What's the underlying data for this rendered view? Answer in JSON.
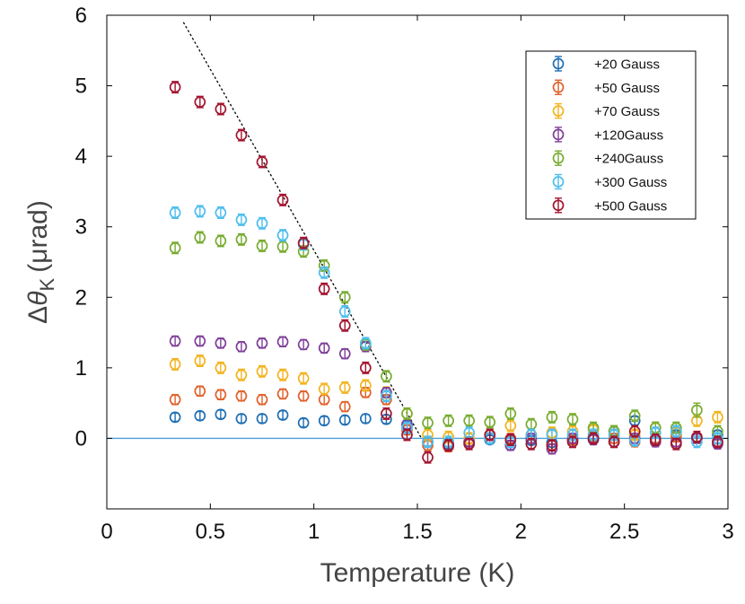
{
  "chart_data": {
    "type": "scatter",
    "title": "",
    "xlabel": "Temperature (K)",
    "ylabel": "Δθ_K (μrad)",
    "ylabel_parts": {
      "delta": "Δ",
      "theta": "θ",
      "sub": "K",
      "unit": "(μrad)"
    },
    "xlim": [
      0,
      3
    ],
    "ylim": [
      -1,
      6
    ],
    "xticks": [
      0,
      0.5,
      1,
      1.5,
      2,
      2.5,
      3
    ],
    "xtick_labels": [
      "0",
      "0.5",
      "1",
      "1.5",
      "2",
      "2.5",
      "3"
    ],
    "yticks": [
      0,
      1,
      2,
      3,
      4,
      5,
      6
    ],
    "ytick_labels": [
      "0",
      "1",
      "2",
      "3",
      "4",
      "5",
      "6"
    ],
    "legend_position": "top-right",
    "grid": false,
    "x": [
      0.33,
      0.45,
      0.55,
      0.65,
      0.75,
      0.85,
      0.95,
      1.05,
      1.15,
      1.25,
      1.35,
      1.45,
      1.55,
      1.65,
      1.75,
      1.85,
      1.95,
      2.05,
      2.15,
      2.25,
      2.35,
      2.45,
      2.55,
      2.65,
      2.75,
      2.85,
      2.95
    ],
    "baseline": {
      "y": 0,
      "color": "#4a9fd8"
    },
    "fit_line": {
      "x": [
        0.37,
        1.52
      ],
      "y": [
        5.9,
        0
      ],
      "color": "#000000",
      "style": "dotted"
    },
    "series": [
      {
        "name": "+20 Gauss",
        "color": "#1f6fb4",
        "y": [
          0.3,
          0.32,
          0.34,
          0.28,
          0.28,
          0.33,
          0.22,
          0.25,
          0.26,
          0.28,
          0.27,
          0.18,
          -0.05,
          -0.08,
          -0.05,
          -0.02,
          -0.1,
          -0.03,
          -0.06,
          -0.02,
          0.0,
          0.1,
          0.25,
          0.0,
          0.05,
          0.0,
          0.05
        ],
        "err": [
          0.06,
          0.06,
          0.06,
          0.06,
          0.06,
          0.06,
          0.06,
          0.06,
          0.06,
          0.06,
          0.06,
          0.06,
          0.06,
          0.06,
          0.06,
          0.06,
          0.06,
          0.06,
          0.06,
          0.06,
          0.06,
          0.06,
          0.06,
          0.06,
          0.06,
          0.06,
          0.06
        ]
      },
      {
        "name": "+50 Gauss",
        "color": "#e0602a",
        "y": [
          0.55,
          0.67,
          0.62,
          0.6,
          0.55,
          0.63,
          0.6,
          0.55,
          0.45,
          0.65,
          0.55,
          0.12,
          -0.1,
          -0.12,
          -0.05,
          0.05,
          0.0,
          0.05,
          -0.1,
          -0.02,
          0.02,
          0.0,
          -0.05,
          0.0,
          0.02,
          0.0,
          -0.05
        ],
        "err": [
          0.07,
          0.07,
          0.07,
          0.07,
          0.07,
          0.07,
          0.07,
          0.07,
          0.07,
          0.07,
          0.07,
          0.07,
          0.07,
          0.07,
          0.07,
          0.07,
          0.07,
          0.07,
          0.07,
          0.07,
          0.07,
          0.07,
          0.07,
          0.07,
          0.07,
          0.07,
          0.07
        ]
      },
      {
        "name": "+70 Gauss",
        "color": "#f2b41f",
        "y": [
          1.05,
          1.1,
          1.0,
          0.9,
          0.95,
          0.9,
          0.85,
          0.7,
          0.72,
          0.75,
          0.65,
          0.35,
          0.05,
          0.02,
          0.0,
          0.05,
          0.18,
          0.05,
          0.08,
          0.1,
          0.12,
          0.1,
          0.05,
          0.15,
          0.08,
          0.25,
          0.3
        ],
        "err": [
          0.08,
          0.08,
          0.08,
          0.08,
          0.08,
          0.08,
          0.08,
          0.08,
          0.08,
          0.08,
          0.08,
          0.08,
          0.08,
          0.08,
          0.08,
          0.08,
          0.08,
          0.08,
          0.08,
          0.08,
          0.08,
          0.08,
          0.08,
          0.08,
          0.08,
          0.08,
          0.08
        ]
      },
      {
        "name": "+120Gauss",
        "color": "#7f3f98",
        "y": [
          1.38,
          1.38,
          1.35,
          1.3,
          1.35,
          1.37,
          1.33,
          1.28,
          1.2,
          1.3,
          0.65,
          0.2,
          -0.05,
          -0.1,
          -0.05,
          0.0,
          -0.1,
          0.0,
          -0.15,
          0.0,
          -0.02,
          -0.05,
          0.0,
          -0.05,
          -0.05,
          0.0,
          -0.08
        ],
        "err": [
          0.07,
          0.07,
          0.07,
          0.07,
          0.07,
          0.07,
          0.07,
          0.07,
          0.07,
          0.07,
          0.07,
          0.07,
          0.07,
          0.07,
          0.07,
          0.07,
          0.07,
          0.07,
          0.07,
          0.07,
          0.07,
          0.07,
          0.07,
          0.07,
          0.07,
          0.07,
          0.07
        ]
      },
      {
        "name": "+240Gauss",
        "color": "#77ac30",
        "y": [
          2.7,
          2.85,
          2.8,
          2.82,
          2.73,
          2.72,
          2.65,
          2.45,
          2.0,
          1.33,
          0.88,
          0.35,
          0.22,
          0.25,
          0.25,
          0.23,
          0.35,
          0.2,
          0.3,
          0.27,
          0.15,
          0.1,
          0.32,
          0.15,
          0.15,
          0.4,
          0.1
        ],
        "err": [
          0.08,
          0.08,
          0.08,
          0.08,
          0.08,
          0.08,
          0.08,
          0.08,
          0.08,
          0.08,
          0.08,
          0.08,
          0.08,
          0.08,
          0.08,
          0.08,
          0.08,
          0.08,
          0.08,
          0.08,
          0.08,
          0.08,
          0.08,
          0.08,
          0.08,
          0.1,
          0.08
        ]
      },
      {
        "name": "+300 Gauss",
        "color": "#4dbeee",
        "y": [
          3.2,
          3.22,
          3.2,
          3.1,
          3.05,
          2.88,
          2.75,
          2.35,
          1.8,
          1.35,
          0.6,
          0.15,
          -0.05,
          -0.05,
          0.08,
          0.0,
          -0.05,
          0.05,
          0.05,
          0.05,
          0.05,
          0.05,
          -0.03,
          0.08,
          0.1,
          -0.05,
          0.0
        ],
        "err": [
          0.08,
          0.08,
          0.08,
          0.08,
          0.08,
          0.08,
          0.08,
          0.08,
          0.08,
          0.08,
          0.08,
          0.08,
          0.08,
          0.08,
          0.08,
          0.08,
          0.08,
          0.08,
          0.08,
          0.08,
          0.08,
          0.08,
          0.08,
          0.08,
          0.08,
          0.08,
          0.08
        ]
      },
      {
        "name": "+500 Gauss",
        "color": "#a2142f",
        "y": [
          4.98,
          4.77,
          4.67,
          4.3,
          3.92,
          3.38,
          2.77,
          2.12,
          1.6,
          1.0,
          0.35,
          0.05,
          -0.27,
          -0.1,
          -0.08,
          0.05,
          -0.02,
          -0.08,
          -0.1,
          -0.05,
          0.0,
          -0.05,
          0.1,
          -0.02,
          -0.08,
          0.02,
          -0.05
        ],
        "err": [
          0.08,
          0.08,
          0.08,
          0.08,
          0.08,
          0.08,
          0.08,
          0.08,
          0.08,
          0.08,
          0.08,
          0.08,
          0.08,
          0.08,
          0.08,
          0.08,
          0.08,
          0.08,
          0.08,
          0.08,
          0.08,
          0.08,
          0.08,
          0.08,
          0.08,
          0.08,
          0.08
        ]
      }
    ]
  }
}
